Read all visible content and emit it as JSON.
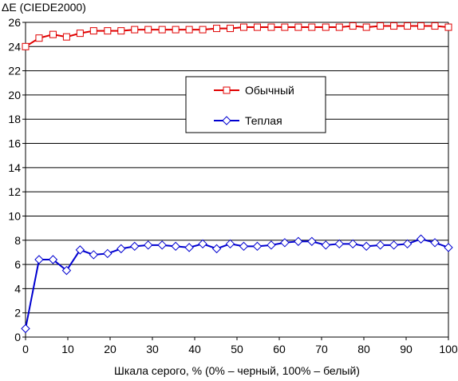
{
  "chart_data": {
    "type": "line",
    "ylabel": "ΔE (CIEDE2000)",
    "xlabel": "Шкала серого, % (0% – черный, 100% – белый)",
    "xlim": [
      0,
      100
    ],
    "ylim": [
      0,
      26
    ],
    "x_ticks": [
      0,
      10,
      20,
      30,
      40,
      50,
      60,
      70,
      80,
      90,
      100
    ],
    "y_ticks": [
      0,
      2,
      4,
      6,
      8,
      10,
      12,
      14,
      16,
      18,
      20,
      22,
      24,
      26
    ],
    "grid": "horizontal",
    "legend_position": "center-right",
    "x": [
      0,
      3.2,
      6.5,
      9.7,
      12.9,
      16.1,
      19.4,
      22.6,
      25.8,
      29,
      32.3,
      35.5,
      38.7,
      41.9,
      45.2,
      48.4,
      51.6,
      54.8,
      58.1,
      61.3,
      64.5,
      67.7,
      71,
      74.2,
      77.4,
      80.6,
      83.9,
      87.1,
      90.3,
      93.5,
      96.8,
      100
    ],
    "series": [
      {
        "name": "Обычный",
        "color": "#e00000",
        "marker": "square",
        "values": [
          24.0,
          24.7,
          25.0,
          24.8,
          25.1,
          25.3,
          25.3,
          25.3,
          25.4,
          25.4,
          25.4,
          25.4,
          25.4,
          25.4,
          25.5,
          25.5,
          25.6,
          25.6,
          25.6,
          25.6,
          25.6,
          25.6,
          25.6,
          25.6,
          25.7,
          25.6,
          25.7,
          25.7,
          25.7,
          25.7,
          25.7,
          25.6
        ]
      },
      {
        "name": "Теплая",
        "color": "#0000d0",
        "marker": "diamond",
        "values": [
          0.7,
          6.4,
          6.4,
          5.5,
          7.2,
          6.8,
          6.9,
          7.3,
          7.5,
          7.6,
          7.6,
          7.5,
          7.4,
          7.7,
          7.3,
          7.7,
          7.5,
          7.5,
          7.6,
          7.8,
          7.9,
          7.9,
          7.6,
          7.7,
          7.7,
          7.5,
          7.6,
          7.6,
          7.7,
          8.1,
          7.8,
          7.4
        ]
      }
    ]
  }
}
